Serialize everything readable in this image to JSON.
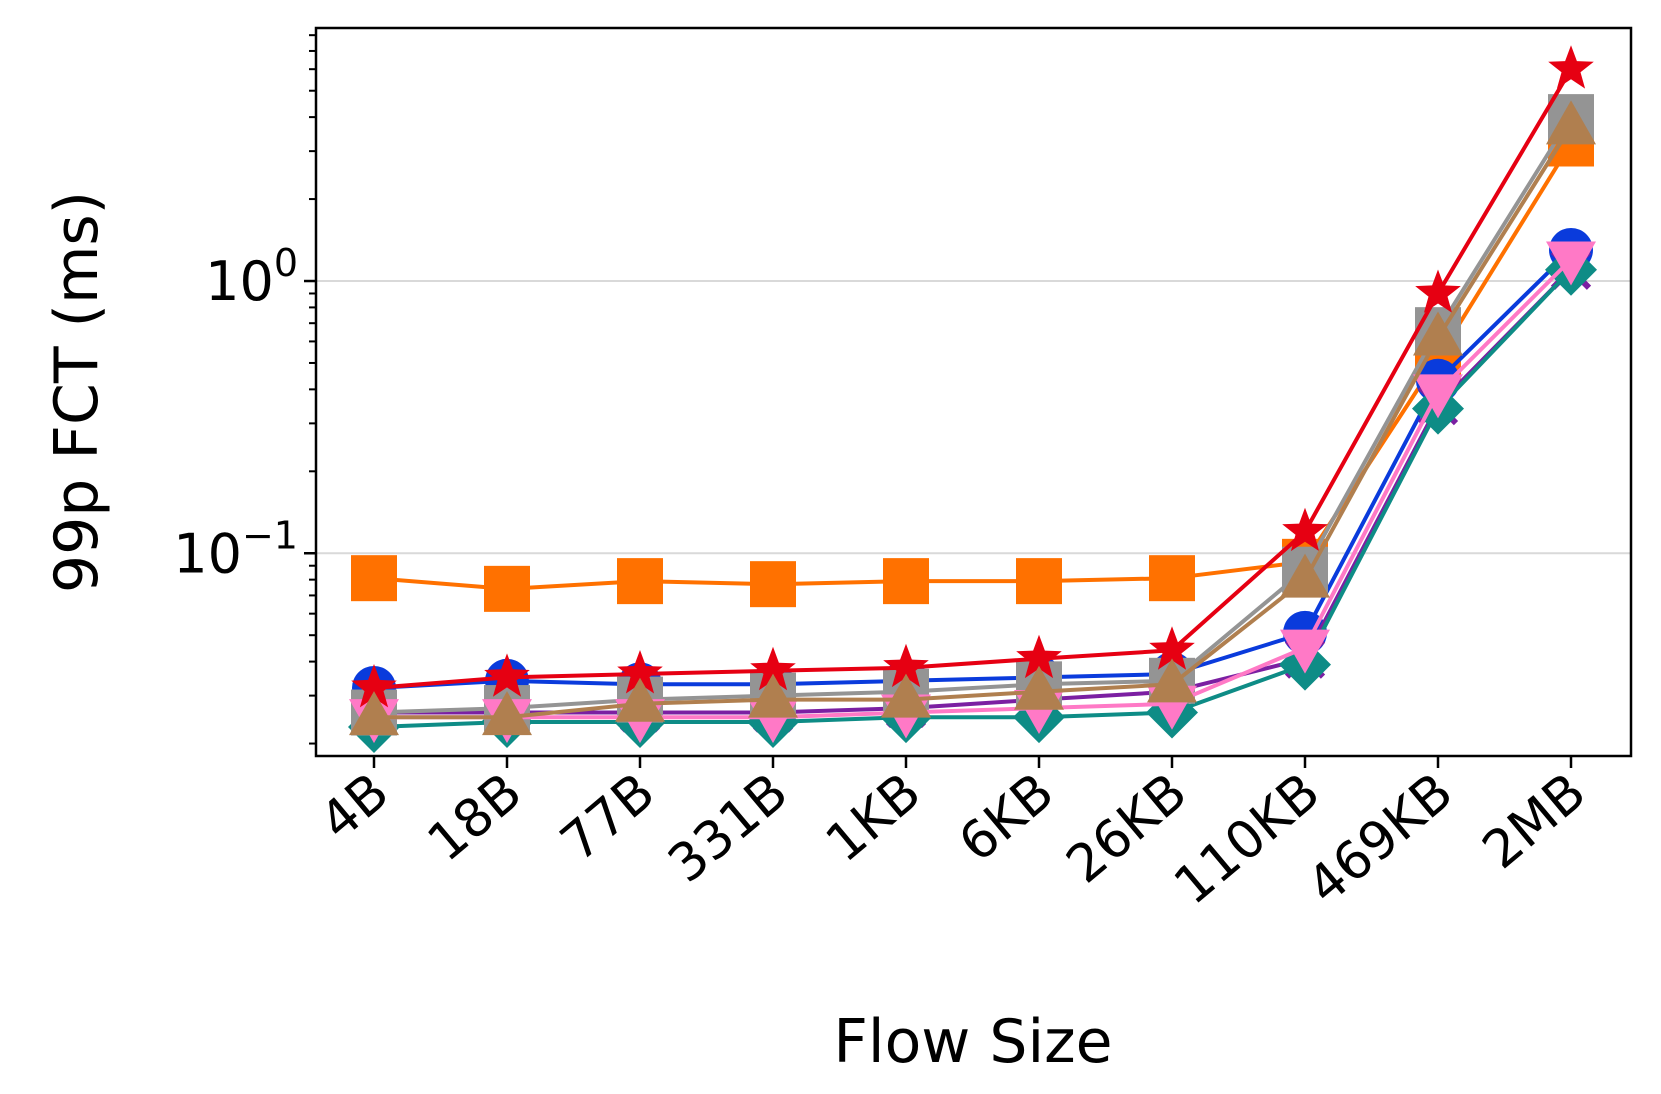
{
  "chart_data": {
    "type": "line",
    "title": "",
    "xlabel": "Flow Size",
    "ylabel": "99p FCT (ms)",
    "y_scale": "log",
    "ylim": [
      0.018,
      8.5
    ],
    "y_ticks": [
      {
        "value": 0.1,
        "base": "10",
        "exp": "−1"
      },
      {
        "value": 1.0,
        "base": "10",
        "exp": "0"
      }
    ],
    "grid": "horizontal-major",
    "legend": "none",
    "categories": [
      "4B",
      "18B",
      "77B",
      "331B",
      "1KB",
      "6KB",
      "26KB",
      "110KB",
      "469KB",
      "2MB"
    ],
    "series": [
      {
        "color": "#ff7100",
        "marker": "square",
        "values": [
          0.081,
          0.074,
          0.079,
          0.077,
          0.079,
          0.079,
          0.081,
          0.093,
          0.52,
          3.2
        ]
      },
      {
        "color": "#0a3bdc",
        "marker": "circle",
        "values": [
          0.032,
          0.034,
          0.033,
          0.033,
          0.034,
          0.035,
          0.036,
          0.051,
          0.43,
          1.3
        ]
      },
      {
        "color": "#7b1fa2",
        "marker": "x",
        "values": [
          0.026,
          0.026,
          0.026,
          0.026,
          0.027,
          0.029,
          0.031,
          0.041,
          0.35,
          1.1
        ]
      },
      {
        "color": "#0e8c86",
        "marker": "diamond",
        "values": [
          0.023,
          0.024,
          0.024,
          0.024,
          0.025,
          0.025,
          0.026,
          0.039,
          0.34,
          1.1
        ]
      },
      {
        "color": "#949494",
        "marker": "square",
        "values": [
          0.026,
          0.027,
          0.029,
          0.03,
          0.031,
          0.033,
          0.034,
          0.087,
          0.66,
          4.0
        ]
      },
      {
        "color": "#ff79c6",
        "marker": "triangle-down",
        "values": [
          0.025,
          0.025,
          0.025,
          0.025,
          0.026,
          0.027,
          0.028,
          0.045,
          0.39,
          1.2
        ]
      },
      {
        "color": "#e60012",
        "marker": "star",
        "values": [
          0.032,
          0.035,
          0.036,
          0.037,
          0.038,
          0.041,
          0.044,
          0.12,
          0.9,
          6.0
        ]
      },
      {
        "color": "#b07f4f",
        "marker": "triangle-up",
        "values": [
          0.025,
          0.025,
          0.028,
          0.029,
          0.029,
          0.031,
          0.033,
          0.08,
          0.62,
          3.7
        ]
      }
    ]
  }
}
